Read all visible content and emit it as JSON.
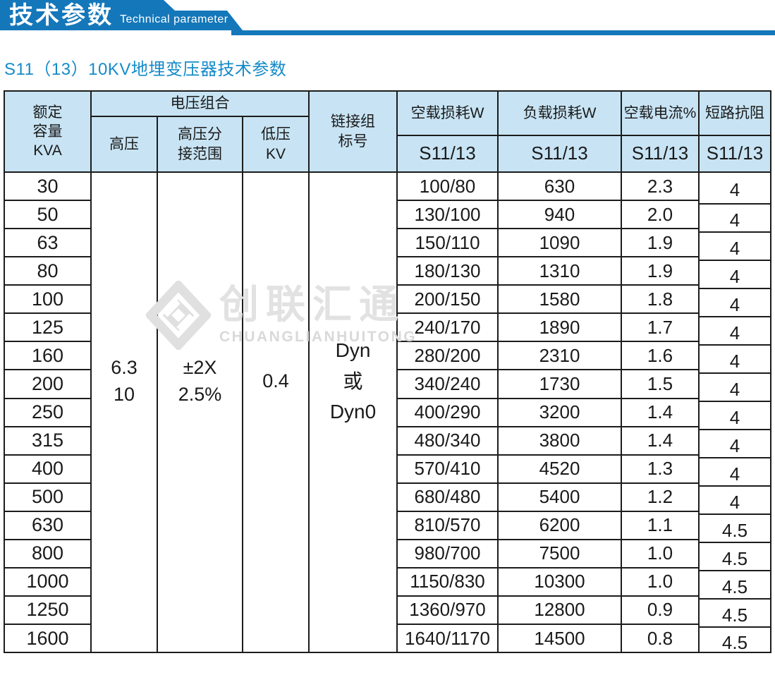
{
  "banner": {
    "title": "技术参数",
    "subtitle": "Technical parameter"
  },
  "page_title": "S11（13）10KV地埋变压器技术参数",
  "watermark": {
    "cn": "创联汇通",
    "en": "CHUANGLIANHUITONG"
  },
  "colors": {
    "banner_blue": "#1477ba",
    "subtitle_blue": "#168bc9",
    "header_bg": "#c8e4f4",
    "border": "#1c1c1c",
    "watermark_gray": "#e2e2e2"
  },
  "table": {
    "headers": {
      "capacity": "额定\n容量\nKVA",
      "voltage_group": "电压组合",
      "hv": "高压",
      "hv_tap": "高压分\n接范围",
      "lv": "低压\nKV",
      "vector": "链接组\n标号",
      "no_load_loss": "空载损耗W",
      "load_loss": "负载损耗W",
      "no_load_current": "空载电流%",
      "impedance": "短路抗阻",
      "model": "S11/13"
    },
    "merged": {
      "hv": "6.3\n10",
      "hv_tap": "±2X\n2.5%",
      "lv": "0.4",
      "vector": "Dyn\n或\nDyn0"
    },
    "rows": {
      "capacity": [
        "30",
        "50",
        "63",
        "80",
        "100",
        "125",
        "160",
        "200",
        "250",
        "315",
        "400",
        "500",
        "630",
        "800",
        "1000",
        "1250",
        "1600"
      ],
      "no_load_loss": [
        "100/80",
        "130/100",
        "150/110",
        "180/130",
        "200/150",
        "240/170",
        "280/200",
        "340/240",
        "400/290",
        "480/340",
        "570/410",
        "680/480",
        "810/570",
        "980/700",
        "1150/830",
        "1360/970",
        "1640/1170"
      ],
      "load_loss": [
        "630",
        "940",
        "1090",
        "1310",
        "1580",
        "1890",
        "2310",
        "1730",
        "3200",
        "3800",
        "4520",
        "5400",
        "6200",
        "7500",
        "10300",
        "12800",
        "14500"
      ],
      "no_load_current": [
        "2.3",
        "2.0",
        "1.9",
        "1.9",
        "1.8",
        "1.7",
        "1.6",
        "1.5",
        "1.4",
        "1.4",
        "1.3",
        "1.2",
        "1.1",
        "1.0",
        "1.0",
        "0.9",
        "0.8"
      ],
      "impedance": [
        "4",
        "4",
        "4",
        "4",
        "4",
        "4",
        "4",
        "4",
        "4",
        "4",
        "4",
        "4",
        "4.5",
        "4.5",
        "4.5",
        "4.5",
        "4.5"
      ]
    }
  }
}
